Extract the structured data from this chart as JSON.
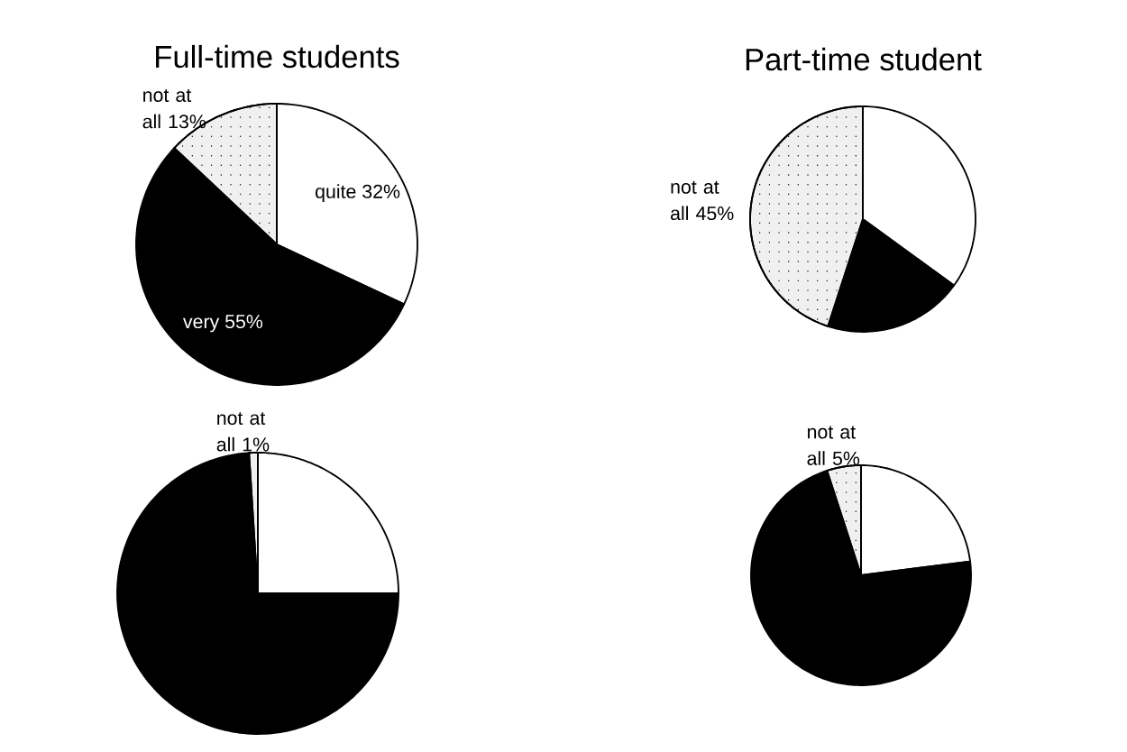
{
  "chart_data": [
    {
      "type": "pie",
      "title": "Full-time students",
      "categories": [
        "quite",
        "very",
        "not at all"
      ],
      "values": [
        32,
        55,
        13
      ],
      "colors": [
        "#ffffff",
        "#000000",
        "#f0f0f0"
      ],
      "value_labels": [
        "32%",
        "55%",
        "13%"
      ]
    },
    {
      "type": "pie",
      "categories": [
        null,
        null,
        "not at all"
      ],
      "values": [
        25,
        74,
        1
      ],
      "colors": [
        "#ffffff",
        "#000000",
        "#f0f0f0"
      ],
      "value_labels": [
        null,
        null,
        "1%"
      ]
    },
    {
      "type": "pie",
      "title": "Part-time student",
      "categories": [
        null,
        null,
        "not at all"
      ],
      "values": [
        35,
        20,
        45
      ],
      "colors": [
        "#ffffff",
        "#000000",
        "#f0f0f0"
      ],
      "value_labels": [
        null,
        null,
        "45%"
      ]
    },
    {
      "type": "pie",
      "categories": [
        null,
        null,
        "not at all"
      ],
      "values": [
        23,
        72,
        5
      ],
      "colors": [
        "#ffffff",
        "#000000",
        "#f0f0f0"
      ],
      "value_labels": [
        null,
        null,
        "5%"
      ]
    }
  ]
}
